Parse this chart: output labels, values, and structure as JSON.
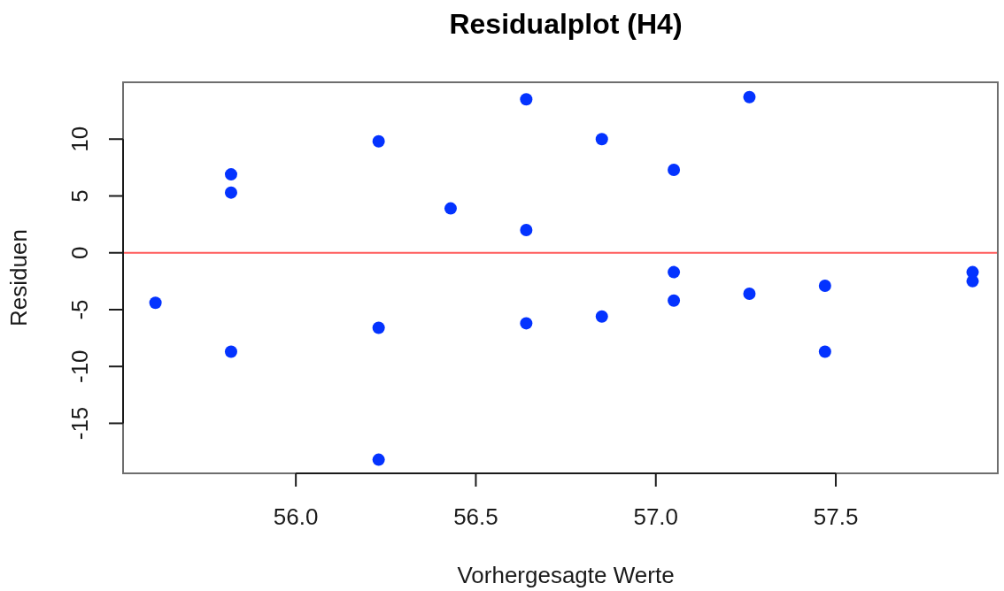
{
  "chart_data": {
    "type": "scatter",
    "title": "Residualplot (H4)",
    "xlabel": "Vorhergesagte Werte",
    "ylabel": "Residuen",
    "x": [
      55.61,
      55.82,
      55.82,
      55.82,
      56.23,
      56.23,
      56.23,
      56.43,
      56.64,
      56.64,
      56.64,
      56.85,
      56.85,
      57.05,
      57.05,
      57.05,
      57.26,
      57.26,
      57.47,
      57.47,
      57.88,
      57.88
    ],
    "values": [
      -4.4,
      6.9,
      5.3,
      -8.7,
      9.8,
      -6.6,
      -18.2,
      3.9,
      13.5,
      2.0,
      -6.2,
      10.0,
      -5.6,
      7.3,
      -1.7,
      -4.2,
      13.7,
      -3.6,
      -2.9,
      -8.7,
      -1.7,
      -2.5
    ],
    "color": "#0433ff",
    "marker": "circle",
    "xlim": [
      55.52,
      57.95
    ],
    "ylim": [
      -19.4,
      15.0
    ],
    "xticks": [
      {
        "value": 56,
        "label": "56.0"
      },
      {
        "value": 56.5,
        "label": "56.5"
      },
      {
        "value": 57,
        "label": "57.0"
      },
      {
        "value": 57.5,
        "label": "57.5"
      }
    ],
    "yticks": [
      -15,
      -10,
      -5,
      0,
      5,
      10
    ],
    "ref_lines": [
      {
        "axis": "y",
        "value": 0,
        "color": "#ff5a5a"
      }
    ]
  }
}
